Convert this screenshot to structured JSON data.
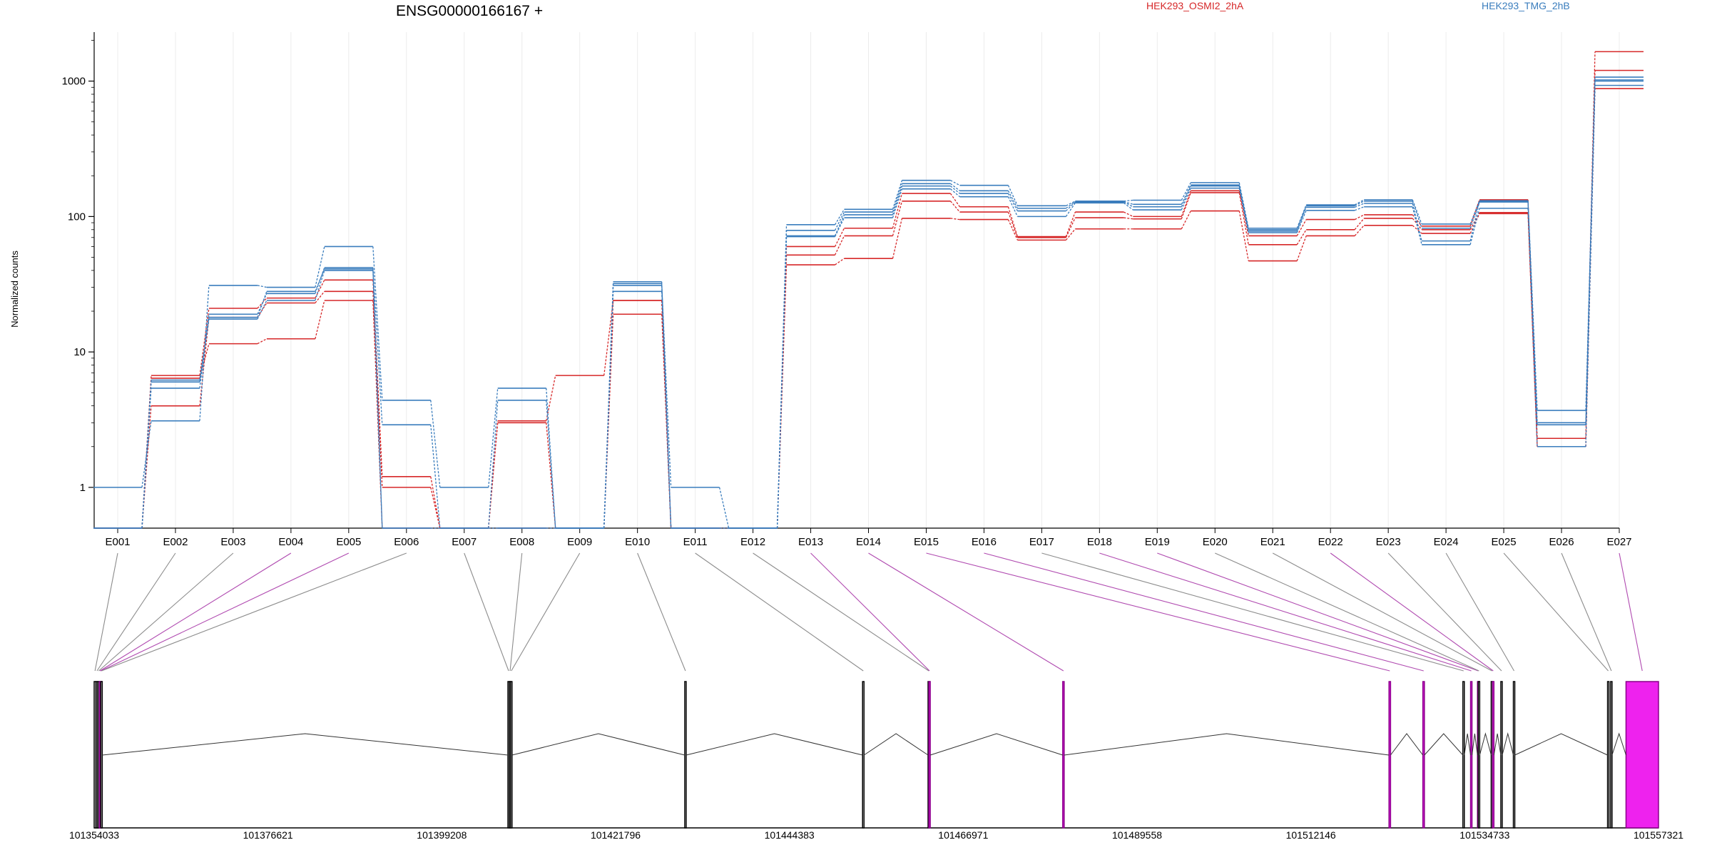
{
  "chart_data": {
    "type": "line",
    "title": "ENSG00000166167 +",
    "ylabel": "Normalized counts",
    "y_scale": "log",
    "yticks": [
      "1",
      "10",
      "100",
      "1000"
    ],
    "ylim": [
      0.5,
      2300
    ],
    "categories": [
      "E001",
      "E002",
      "E003",
      "E004",
      "E005",
      "E006",
      "E007",
      "E008",
      "E009",
      "E010",
      "E011",
      "E012",
      "E013",
      "E014",
      "E015",
      "E016",
      "E017",
      "E018",
      "E019",
      "E020",
      "E021",
      "E022",
      "E023",
      "E024",
      "E025",
      "E026",
      "E027"
    ],
    "legend": [
      {
        "label": "HEK293_OSMI2_2hA",
        "color": "#d62728"
      },
      {
        "label": "HEK293_TMG_2hB",
        "color": "#3a7dbd"
      }
    ],
    "series": [
      {
        "group": "HEK293_OSMI2_2hA",
        "color": "#d62728",
        "values": [
          0.5,
          6.7,
          21,
          25,
          34,
          1.2,
          0.5,
          3.1,
          6.7,
          24,
          0.5,
          0.5,
          60,
          82,
          148,
          118,
          71,
          108,
          100,
          155,
          72,
          95,
          103,
          85,
          133,
          2.3,
          1650
        ]
      },
      {
        "group": "HEK293_OSMI2_2hA",
        "color": "#d62728",
        "values": [
          0.5,
          4,
          18,
          23,
          28,
          1.0,
          0.5,
          3.0,
          0.5,
          24,
          0.5,
          0.5,
          52,
          72,
          130,
          108,
          70,
          98,
          96,
          150,
          62,
          80,
          97,
          80,
          107,
          2.0,
          1200
        ]
      },
      {
        "group": "HEK293_OSMI2_2hA",
        "color": "#d62728",
        "values": [
          0.5,
          6.4,
          11.5,
          12.5,
          24,
          0.5,
          0.5,
          0.5,
          0.5,
          19,
          0.5,
          0.5,
          44,
          49,
          97,
          95,
          67,
          81,
          81,
          110,
          47,
          72,
          86,
          75,
          105,
          2.0,
          880
        ]
      },
      {
        "group": "HEK293_TMG_2hB",
        "color": "#3a7dbd",
        "values": [
          1.0,
          3.1,
          31,
          30,
          60,
          4.4,
          1.0,
          5.4,
          0.5,
          32,
          1.0,
          0.5,
          87,
          113,
          185,
          170,
          120,
          130,
          132,
          178,
          82,
          122,
          133,
          88,
          131,
          3.7,
          1000
        ]
      },
      {
        "group": "HEK293_TMG_2hB",
        "color": "#3a7dbd",
        "values": [
          0.5,
          5.4,
          19,
          27,
          42,
          2.9,
          0.5,
          4.4,
          0.5,
          31,
          0.5,
          0.5,
          79,
          108,
          175,
          155,
          115,
          129,
          123,
          171,
          80,
          120,
          130,
          82,
          128,
          3.0,
          1070
        ]
      },
      {
        "group": "HEK293_TMG_2hB",
        "color": "#3a7dbd",
        "values": [
          0.5,
          6.2,
          17.5,
          24,
          40,
          0.5,
          0.5,
          0.5,
          0.5,
          28,
          0.5,
          0.5,
          71,
          98,
          160,
          140,
          100,
          126,
          112,
          162,
          76,
          111,
          118,
          62,
          115,
          2.0,
          930
        ]
      },
      {
        "group": "HEK293_TMG_2hB",
        "color": "#3a7dbd",
        "values": [
          0.5,
          6.0,
          18,
          28,
          41,
          0.5,
          0.5,
          0.5,
          0.5,
          33,
          0.5,
          0.5,
          72,
          103,
          168,
          148,
          110,
          128,
          118,
          168,
          78,
          117,
          125,
          66,
          130,
          2.9,
          1020
        ]
      }
    ],
    "gene_model": {
      "start": 101354033,
      "end": 101557321,
      "coordinate_ticks": [
        "101354033",
        "101376621",
        "101399208",
        "101421796",
        "101444383",
        "101466971",
        "101489558",
        "101512146",
        "101534733",
        "101557321"
      ],
      "highlight_color": "#ee22ee",
      "exons": [
        {
          "id": "E001",
          "start": 101354033,
          "end": 101354250,
          "highlight": false
        },
        {
          "id": "E002",
          "start": 101354300,
          "end": 101354500,
          "highlight": false
        },
        {
          "id": "E003",
          "start": 101354530,
          "end": 101354700,
          "highlight": false
        },
        {
          "id": "E004",
          "start": 101354700,
          "end": 101354820,
          "highlight": true
        },
        {
          "id": "E005",
          "start": 101354820,
          "end": 101354900,
          "highlight": true
        },
        {
          "id": "E006",
          "start": 101354900,
          "end": 101355000,
          "highlight": false
        },
        {
          "id": "E007",
          "start": 101407800,
          "end": 101407950,
          "highlight": false
        },
        {
          "id": "E008",
          "start": 101407990,
          "end": 101408150,
          "highlight": false
        },
        {
          "id": "E009",
          "start": 101408150,
          "end": 101408250,
          "highlight": false
        },
        {
          "id": "E010",
          "start": 101430780,
          "end": 101430900,
          "highlight": false
        },
        {
          "id": "E011",
          "start": 101453890,
          "end": 101454010,
          "highlight": false
        },
        {
          "id": "E012",
          "start": 101462400,
          "end": 101462500,
          "highlight": false
        },
        {
          "id": "E013",
          "start": 101462500,
          "end": 101462600,
          "highlight": true
        },
        {
          "id": "E014",
          "start": 101479900,
          "end": 101480050,
          "highlight": true
        },
        {
          "id": "E015",
          "start": 101522300,
          "end": 101522500,
          "highlight": true
        },
        {
          "id": "E016",
          "start": 101526700,
          "end": 101526900,
          "highlight": true
        },
        {
          "id": "E017",
          "start": 101531900,
          "end": 101532000,
          "highlight": false
        },
        {
          "id": "E018",
          "start": 101532900,
          "end": 101533000,
          "highlight": true
        },
        {
          "id": "E019",
          "start": 101533800,
          "end": 101533900,
          "highlight": true
        },
        {
          "id": "E020",
          "start": 101533900,
          "end": 101534050,
          "highlight": false
        },
        {
          "id": "E021",
          "start": 101535580,
          "end": 101535700,
          "highlight": false
        },
        {
          "id": "E022",
          "start": 101535750,
          "end": 101535850,
          "highlight": true
        },
        {
          "id": "E023",
          "start": 101536830,
          "end": 101536950,
          "highlight": false
        },
        {
          "id": "E024",
          "start": 101538460,
          "end": 101538580,
          "highlight": false
        },
        {
          "id": "E025",
          "start": 101550700,
          "end": 101550830,
          "highlight": false
        },
        {
          "id": "E026",
          "start": 101551100,
          "end": 101551250,
          "highlight": false
        },
        {
          "id": "E027",
          "start": 101553100,
          "end": 101557321,
          "highlight": true
        }
      ]
    }
  }
}
